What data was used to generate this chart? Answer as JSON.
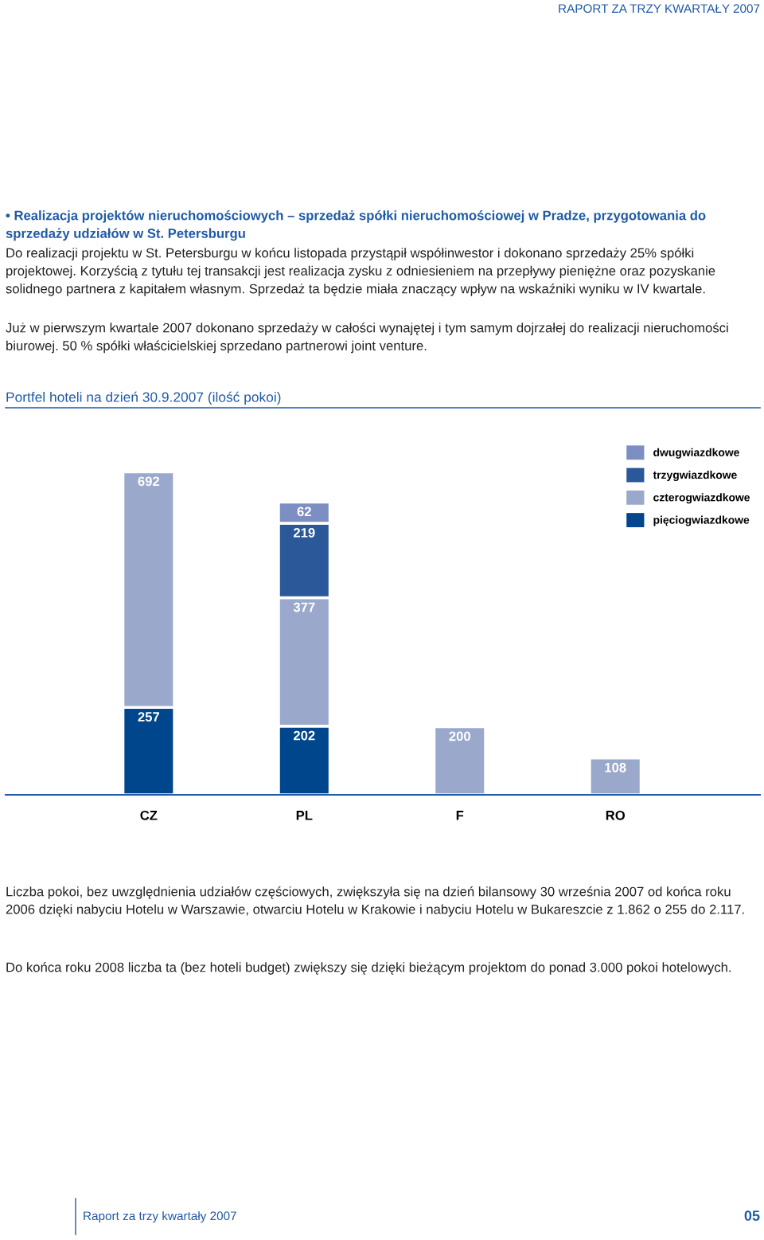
{
  "chart_data": {
    "type": "bar",
    "stacked": true,
    "title": "Portfel hoteli na dzień 30.9.2007 (ilość pokoi)",
    "categories": [
      "CZ",
      "PL",
      "F",
      "RO"
    ],
    "series": [
      {
        "name": "pięciogwiazdkowe",
        "color": "#00468c",
        "values": [
          257,
          202,
          null,
          null
        ]
      },
      {
        "name": "czterogwiazdkowe",
        "color": "#9aa8cc",
        "values": [
          692,
          377,
          200,
          108
        ]
      },
      {
        "name": "trzygwiazdkowe",
        "color": "#2b5898",
        "values": [
          null,
          219,
          null,
          null
        ]
      },
      {
        "name": "dwugwiazdkowe",
        "color": "#7d8fc2",
        "values": [
          null,
          62,
          null,
          null
        ]
      }
    ],
    "data_labels": true,
    "legend": "top right",
    "tick_labels": "x",
    "grid": false,
    "annotations": [
      "RAPORT ZA TRZY KWARTAŁY 2007",
      "• Realizacja projektów nieruchomościowych – sprzedaż spółki nieruchomościowej w Pradze, przygotowania do sprzedaży udziałów w St. Petersburgu",
      "Do realizacji projektu w St. Petersburgu w końcu listopada przystąpił współinwestor i dokonano sprzedaży 25% spółki projektowej. Korzyścią z tytułu tej transakcji jest realizacja zysku z odniesieniem na przepływy pieniężne oraz pozyskanie solidnego partnera z kapitałem własnym. Sprzedaż ta będzie miała znaczący wpływ na wskaźniki wyniku w IV kwartale.",
      "Już w pierwszym kwartale 2007 dokonano sprzedaży w całości wynajętej i tym samym dojrzałej do realizacji nieruchomości biurowej. 50 % spółki właścicielskiej sprzedano partnerowi joint venture.",
      "Liczba pokoi, bez uwzględnienia udziałów częściowych, zwiększyła się na dzień bilansowy 30 września 2007 od końca roku 2006 dzięki nabyciu Hotelu w Warszawie, otwarciu Hotelu w Krakowie i nabyciu Hotelu w Bukareszcie z 1.862 o 255 do 2.117.",
      "Do końca roku 2008 liczba ta (bez hoteli budget) zwiększy się dzięki bieżącym projektom do ponad 3.000 pokoi hotelowych.",
      "Raport za trzy kwartały 2007",
      "05"
    ]
  }
}
